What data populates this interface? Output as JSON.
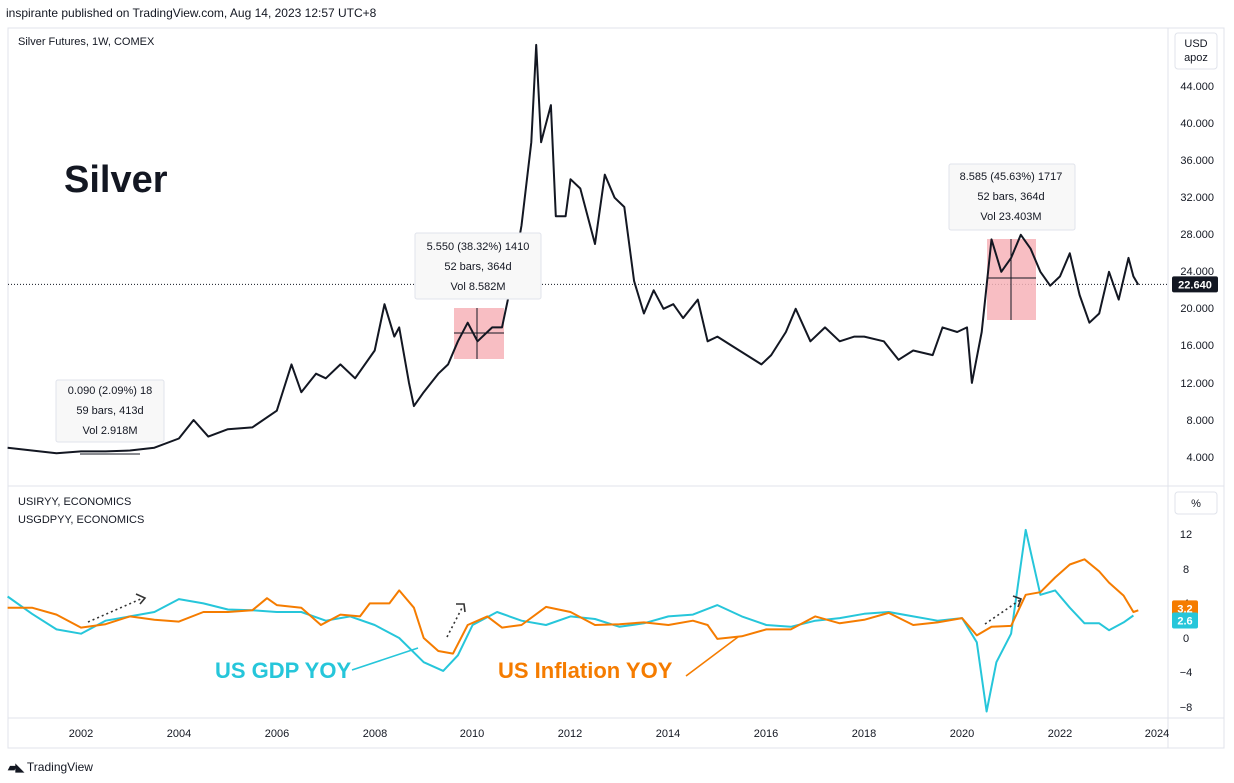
{
  "header": {
    "published": "inspirante published on TradingView.com, Aug 14, 2023 12:57 UTC+8"
  },
  "footer": {
    "brand": "TradingView"
  },
  "chart_data": [
    {
      "type": "line",
      "pane": "price",
      "symbol_label": "Silver Futures, 1W, COMEX",
      "annotation_title": "Silver",
      "unit_label": [
        "USD",
        "apoz"
      ],
      "y_ticks": [
        "44.000",
        "40.000",
        "36.000",
        "32.000",
        "28.000",
        "24.000",
        "20.000",
        "16.000",
        "12.000",
        "8.000",
        "4.000"
      ],
      "ylim": [
        0,
        48
      ],
      "last_price": "22.640",
      "series": [
        {
          "name": "Silver Futures",
          "color": "#131722",
          "points": [
            [
              2000.5,
              5.0
            ],
            [
              2001.0,
              4.7
            ],
            [
              2001.5,
              4.4
            ],
            [
              2002.0,
              4.6
            ],
            [
              2002.5,
              4.6
            ],
            [
              2003.0,
              4.7
            ],
            [
              2003.5,
              5.0
            ],
            [
              2004.0,
              6.0
            ],
            [
              2004.3,
              8.0
            ],
            [
              2004.6,
              6.2
            ],
            [
              2005.0,
              7.0
            ],
            [
              2005.5,
              7.2
            ],
            [
              2006.0,
              9.0
            ],
            [
              2006.3,
              14.0
            ],
            [
              2006.5,
              11.0
            ],
            [
              2006.8,
              13.0
            ],
            [
              2007.0,
              12.5
            ],
            [
              2007.3,
              14.0
            ],
            [
              2007.6,
              12.5
            ],
            [
              2008.0,
              15.5
            ],
            [
              2008.2,
              20.5
            ],
            [
              2008.4,
              17.0
            ],
            [
              2008.5,
              18.0
            ],
            [
              2008.7,
              12.0
            ],
            [
              2008.8,
              9.5
            ],
            [
              2009.0,
              11.0
            ],
            [
              2009.3,
              13.0
            ],
            [
              2009.5,
              14.0
            ],
            [
              2009.7,
              16.5
            ],
            [
              2009.9,
              18.5
            ],
            [
              2010.1,
              16.5
            ],
            [
              2010.4,
              18.0
            ],
            [
              2010.6,
              18.0
            ],
            [
              2010.8,
              23.0
            ],
            [
              2011.0,
              29.0
            ],
            [
              2011.2,
              38.0
            ],
            [
              2011.3,
              48.5
            ],
            [
              2011.4,
              38.0
            ],
            [
              2011.6,
              42.0
            ],
            [
              2011.7,
              30.0
            ],
            [
              2011.9,
              30.0
            ],
            [
              2012.0,
              34.0
            ],
            [
              2012.2,
              33.0
            ],
            [
              2012.5,
              27.0
            ],
            [
              2012.7,
              34.5
            ],
            [
              2012.9,
              32.0
            ],
            [
              2013.1,
              31.0
            ],
            [
              2013.3,
              23.0
            ],
            [
              2013.5,
              19.5
            ],
            [
              2013.7,
              22.0
            ],
            [
              2013.9,
              20.0
            ],
            [
              2014.1,
              20.5
            ],
            [
              2014.3,
              19.0
            ],
            [
              2014.6,
              21.0
            ],
            [
              2014.8,
              16.5
            ],
            [
              2015.0,
              17.0
            ],
            [
              2015.3,
              16.0
            ],
            [
              2015.6,
              15.0
            ],
            [
              2015.9,
              14.0
            ],
            [
              2016.1,
              15.0
            ],
            [
              2016.4,
              17.5
            ],
            [
              2016.6,
              20.0
            ],
            [
              2016.9,
              16.5
            ],
            [
              2017.2,
              18.0
            ],
            [
              2017.5,
              16.5
            ],
            [
              2017.8,
              17.0
            ],
            [
              2018.0,
              17.0
            ],
            [
              2018.4,
              16.5
            ],
            [
              2018.7,
              14.5
            ],
            [
              2019.0,
              15.5
            ],
            [
              2019.4,
              15.0
            ],
            [
              2019.6,
              18.0
            ],
            [
              2019.9,
              17.5
            ],
            [
              2020.1,
              18.0
            ],
            [
              2020.2,
              12.0
            ],
            [
              2020.4,
              17.5
            ],
            [
              2020.6,
              27.5
            ],
            [
              2020.8,
              24.0
            ],
            [
              2021.0,
              25.5
            ],
            [
              2021.2,
              28.0
            ],
            [
              2021.4,
              26.5
            ],
            [
              2021.6,
              24.0
            ],
            [
              2021.8,
              22.5
            ],
            [
              2022.0,
              23.5
            ],
            [
              2022.2,
              26.0
            ],
            [
              2022.4,
              21.5
            ],
            [
              2022.6,
              18.5
            ],
            [
              2022.8,
              19.5
            ],
            [
              2023.0,
              24.0
            ],
            [
              2023.2,
              21.0
            ],
            [
              2023.4,
              25.5
            ],
            [
              2023.5,
              23.5
            ],
            [
              2023.6,
              22.6
            ]
          ]
        }
      ],
      "measurements": [
        {
          "line1": "0.090 (2.09%) 18",
          "line2": "59 bars, 413d",
          "line3": "Vol 2.918M"
        },
        {
          "line1": "5.550 (38.32%) 1410",
          "line2": "52 bars, 364d",
          "line3": "Vol 8.582M"
        },
        {
          "line1": "8.585 (45.63%) 1717",
          "line2": "52 bars, 364d",
          "line3": "Vol 23.403M"
        }
      ]
    },
    {
      "type": "line",
      "pane": "indicator",
      "unit_label": "%",
      "y_ticks": [
        "12",
        "8",
        "4",
        "0",
        "−4",
        "−8"
      ],
      "ylim": [
        -9,
        14
      ],
      "labels": [
        "USIRYY, ECONOMICS",
        "USGDPYY, ECONOMICS"
      ],
      "last_values": {
        "inflation": "3.2",
        "gdp": "2.6"
      },
      "annotations": {
        "gdp": "US GDP YOY",
        "inflation": "US Inflation YOY"
      },
      "x_ticks": [
        "2002",
        "2004",
        "2006",
        "2008",
        "2010",
        "2012",
        "2014",
        "2016",
        "2018",
        "2020",
        "2022",
        "2024"
      ],
      "series": [
        {
          "name": "USGDPYY",
          "color": "#26c6da",
          "points": [
            [
              2000.5,
              4.8
            ],
            [
              2001.0,
              2.8
            ],
            [
              2001.5,
              1.0
            ],
            [
              2002.0,
              0.5
            ],
            [
              2002.5,
              2.0
            ],
            [
              2003.0,
              2.5
            ],
            [
              2003.5,
              3.0
            ],
            [
              2004.0,
              4.5
            ],
            [
              2004.5,
              4.0
            ],
            [
              2005.0,
              3.3
            ],
            [
              2005.5,
              3.2
            ],
            [
              2006.0,
              3.0
            ],
            [
              2006.5,
              3.0
            ],
            [
              2007.0,
              2.0
            ],
            [
              2007.5,
              2.5
            ],
            [
              2008.0,
              1.5
            ],
            [
              2008.5,
              0.0
            ],
            [
              2009.0,
              -2.8
            ],
            [
              2009.4,
              -3.8
            ],
            [
              2009.7,
              -2.0
            ],
            [
              2010.0,
              1.5
            ],
            [
              2010.5,
              3.0
            ],
            [
              2011.0,
              2.0
            ],
            [
              2011.5,
              1.5
            ],
            [
              2012.0,
              2.5
            ],
            [
              2012.5,
              2.2
            ],
            [
              2013.0,
              1.3
            ],
            [
              2013.5,
              1.7
            ],
            [
              2014.0,
              2.5
            ],
            [
              2014.5,
              2.7
            ],
            [
              2015.0,
              3.8
            ],
            [
              2015.5,
              2.5
            ],
            [
              2016.0,
              1.5
            ],
            [
              2016.5,
              1.3
            ],
            [
              2017.0,
              2.0
            ],
            [
              2017.5,
              2.3
            ],
            [
              2018.0,
              2.8
            ],
            [
              2018.5,
              3.0
            ],
            [
              2019.0,
              2.5
            ],
            [
              2019.5,
              2.0
            ],
            [
              2020.0,
              2.3
            ],
            [
              2020.3,
              -0.5
            ],
            [
              2020.5,
              -8.5
            ],
            [
              2020.7,
              -2.8
            ],
            [
              2021.0,
              0.5
            ],
            [
              2021.3,
              12.5
            ],
            [
              2021.6,
              5.0
            ],
            [
              2021.9,
              5.5
            ],
            [
              2022.2,
              3.5
            ],
            [
              2022.5,
              1.7
            ],
            [
              2022.8,
              1.7
            ],
            [
              2023.0,
              0.9
            ],
            [
              2023.3,
              1.8
            ],
            [
              2023.5,
              2.6
            ]
          ]
        },
        {
          "name": "USIRYY",
          "color": "#f57c00",
          "points": [
            [
              2000.5,
              3.5
            ],
            [
              2001.0,
              3.5
            ],
            [
              2001.5,
              2.7
            ],
            [
              2002.0,
              1.2
            ],
            [
              2002.5,
              1.6
            ],
            [
              2003.0,
              2.5
            ],
            [
              2003.5,
              2.1
            ],
            [
              2004.0,
              1.9
            ],
            [
              2004.5,
              3.0
            ],
            [
              2005.0,
              3.0
            ],
            [
              2005.5,
              3.2
            ],
            [
              2005.8,
              4.6
            ],
            [
              2006.0,
              3.8
            ],
            [
              2006.5,
              3.5
            ],
            [
              2006.9,
              1.5
            ],
            [
              2007.3,
              2.7
            ],
            [
              2007.7,
              2.5
            ],
            [
              2007.9,
              4.0
            ],
            [
              2008.3,
              4.0
            ],
            [
              2008.5,
              5.5
            ],
            [
              2008.8,
              3.5
            ],
            [
              2009.0,
              0.0
            ],
            [
              2009.3,
              -1.5
            ],
            [
              2009.6,
              -1.8
            ],
            [
              2009.9,
              1.5
            ],
            [
              2010.3,
              2.5
            ],
            [
              2010.6,
              1.2
            ],
            [
              2011.0,
              1.5
            ],
            [
              2011.5,
              3.6
            ],
            [
              2012.0,
              3.0
            ],
            [
              2012.5,
              1.5
            ],
            [
              2013.0,
              1.6
            ],
            [
              2013.5,
              1.8
            ],
            [
              2014.0,
              1.5
            ],
            [
              2014.5,
              2.0
            ],
            [
              2014.8,
              1.5
            ],
            [
              2015.0,
              -0.1
            ],
            [
              2015.5,
              0.2
            ],
            [
              2016.0,
              1.0
            ],
            [
              2016.5,
              1.0
            ],
            [
              2017.0,
              2.5
            ],
            [
              2017.5,
              1.7
            ],
            [
              2018.0,
              2.1
            ],
            [
              2018.5,
              2.9
            ],
            [
              2019.0,
              1.5
            ],
            [
              2019.5,
              1.8
            ],
            [
              2020.0,
              2.3
            ],
            [
              2020.3,
              0.3
            ],
            [
              2020.6,
              1.3
            ],
            [
              2021.0,
              1.4
            ],
            [
              2021.3,
              5.0
            ],
            [
              2021.6,
              5.3
            ],
            [
              2021.9,
              7.0
            ],
            [
              2022.2,
              8.5
            ],
            [
              2022.5,
              9.1
            ],
            [
              2022.8,
              7.7
            ],
            [
              2023.0,
              6.4
            ],
            [
              2023.3,
              4.9
            ],
            [
              2023.5,
              3.0
            ],
            [
              2023.6,
              3.2
            ]
          ]
        }
      ]
    }
  ]
}
